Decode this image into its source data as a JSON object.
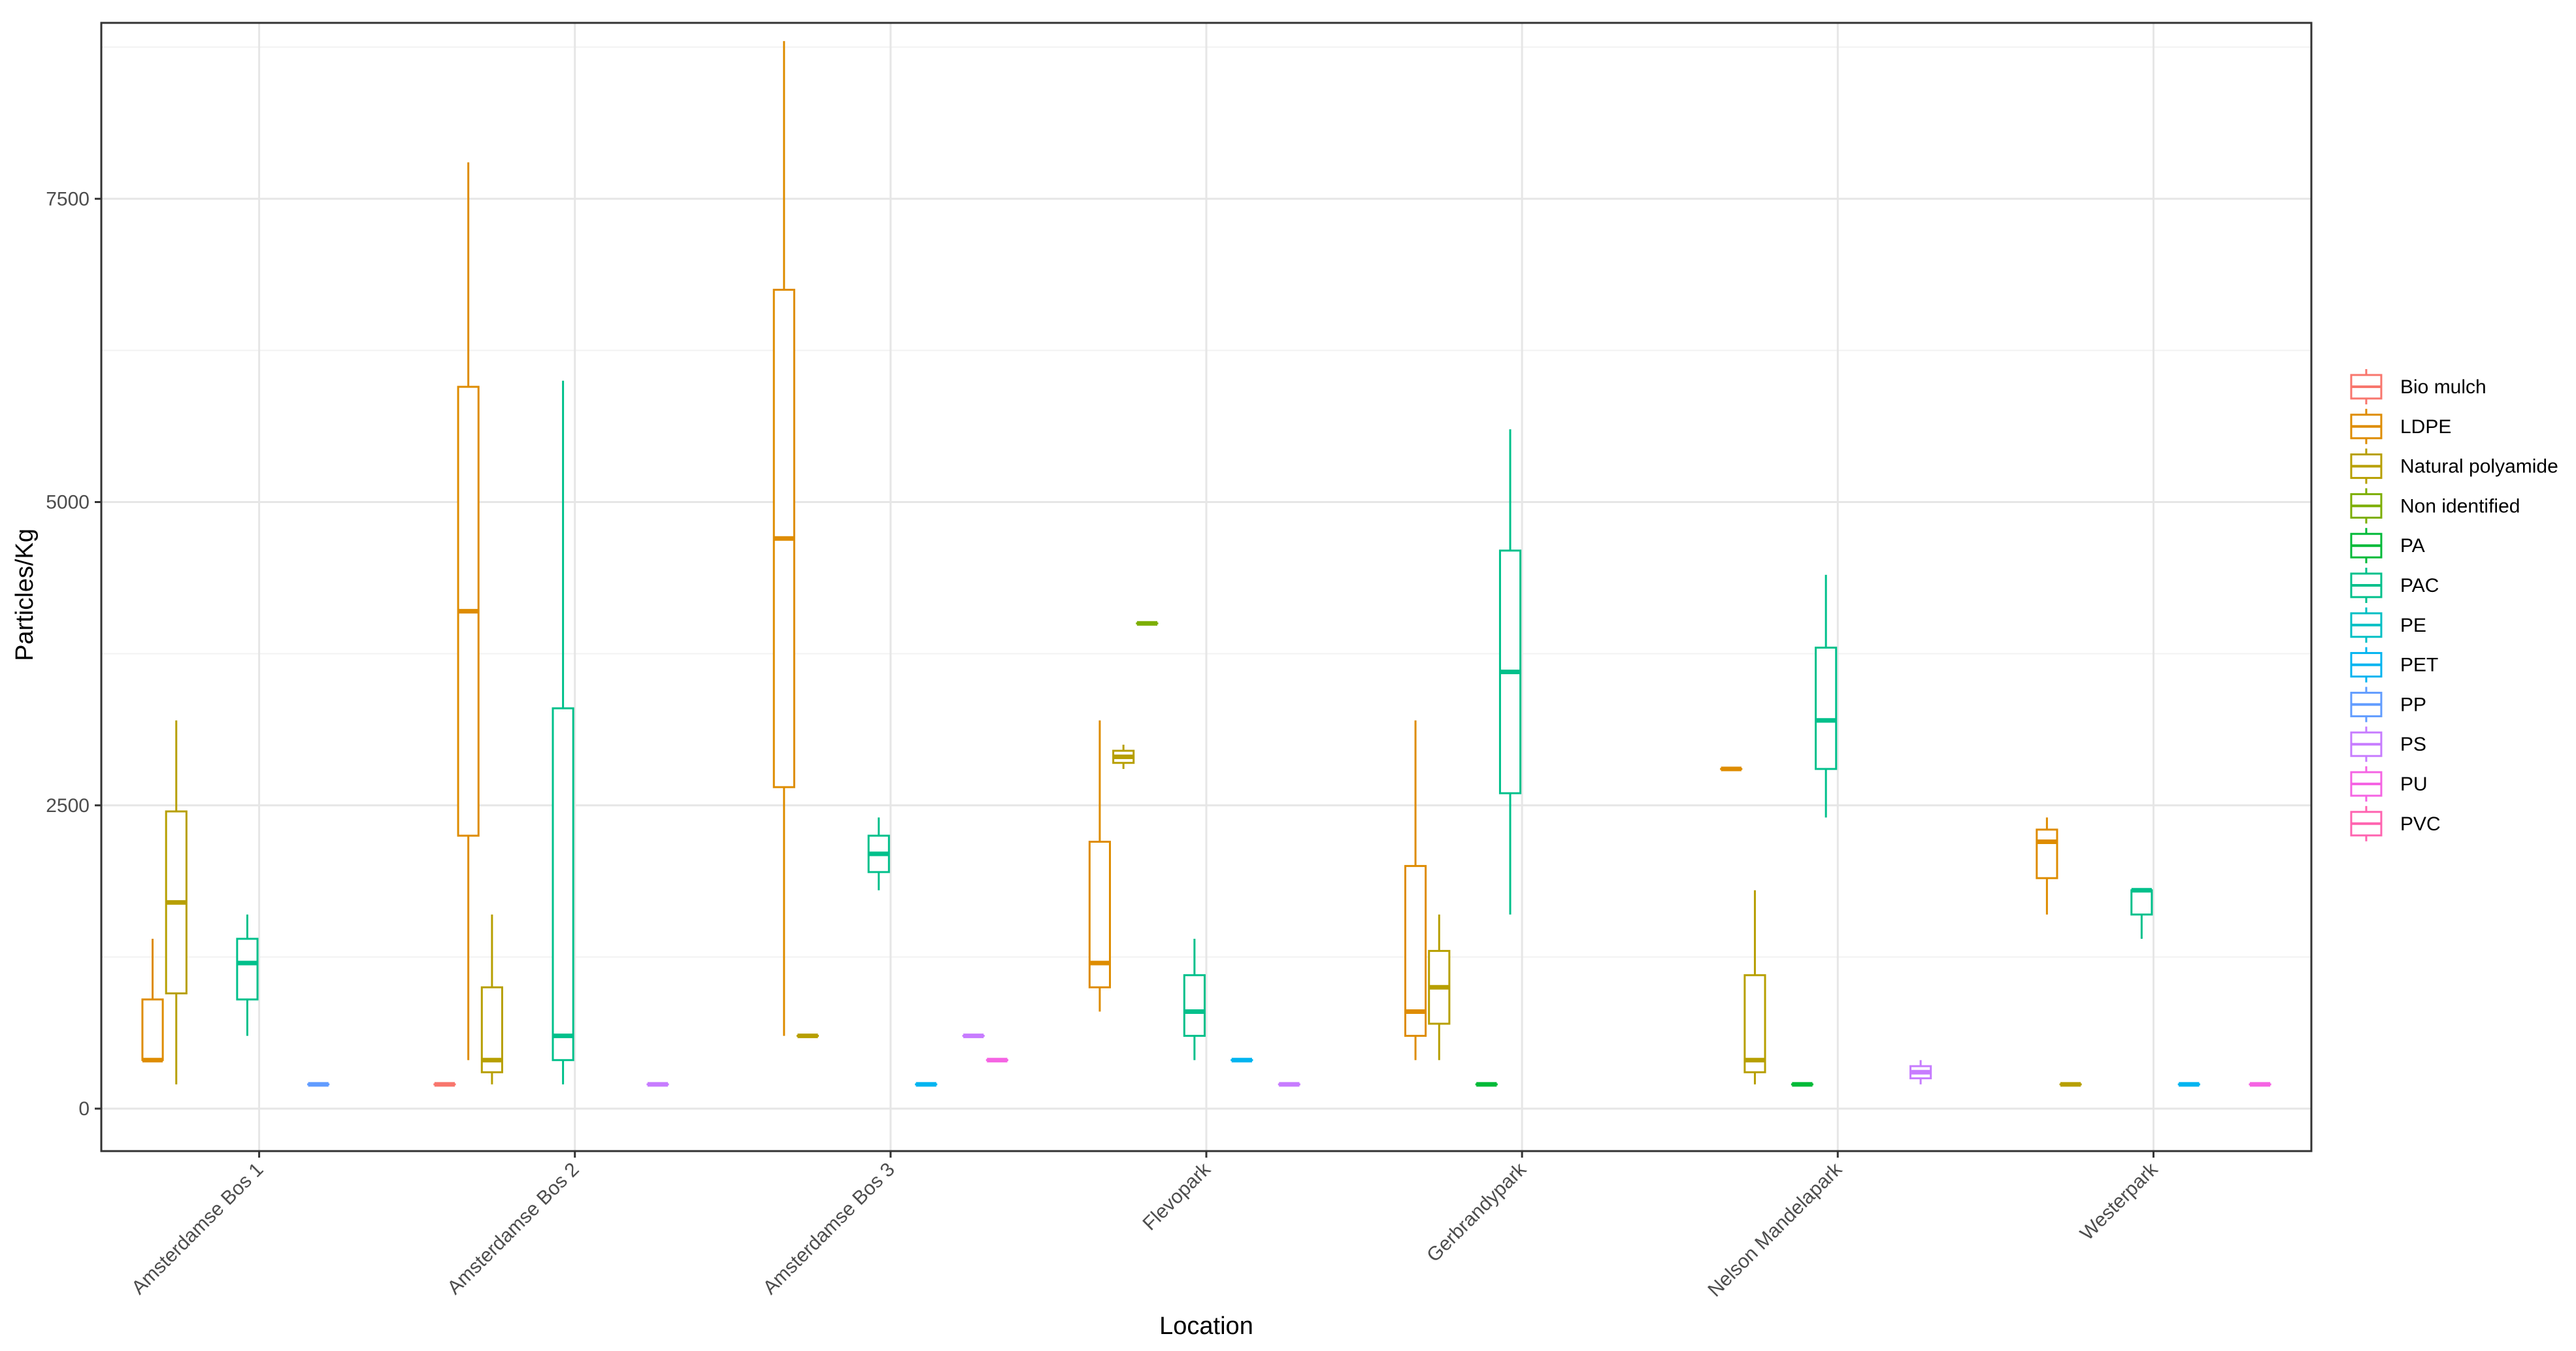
{
  "chart_data": {
    "type": "boxplot",
    "title": "",
    "xlabel": "Location",
    "ylabel": "Particles/Kg",
    "ylim": [
      -350,
      8950
    ],
    "y_ticks": [
      0,
      2500,
      5000,
      7500
    ],
    "grid": true,
    "legend_position": "right",
    "categories": [
      "Amsterdamse Bos 1",
      "Amsterdamse Bos 2",
      "Amsterdamse Bos 3",
      "Flevopark",
      "Gerbrandypark",
      "Nelson Mandelapark",
      "Westerpark"
    ],
    "series": [
      {
        "name": "Bio mulch",
        "color": "#F8766D"
      },
      {
        "name": "LDPE",
        "color": "#DE8C00"
      },
      {
        "name": "Natural polyamide",
        "color": "#B79F00"
      },
      {
        "name": "Non identified",
        "color": "#7CAE00"
      },
      {
        "name": "PA",
        "color": "#00BA38"
      },
      {
        "name": "PAC",
        "color": "#00C08B"
      },
      {
        "name": "PE",
        "color": "#00BFC4"
      },
      {
        "name": "PET",
        "color": "#00B4F0"
      },
      {
        "name": "PP",
        "color": "#619CFF"
      },
      {
        "name": "PS",
        "color": "#C77CFF"
      },
      {
        "name": "PU",
        "color": "#F564E3"
      },
      {
        "name": "PVC",
        "color": "#FF64B0"
      }
    ],
    "boxes": [
      {
        "location": "Amsterdamse Bos 1",
        "series": "LDPE",
        "min": 400,
        "q1": 400,
        "median": 400,
        "q3": 900,
        "max": 1400
      },
      {
        "location": "Amsterdamse Bos 1",
        "series": "Natural polyamide",
        "min": 200,
        "q1": 950,
        "median": 1700,
        "q3": 2450,
        "max": 3200
      },
      {
        "location": "Amsterdamse Bos 1",
        "series": "PAC",
        "min": 600,
        "q1": 900,
        "median": 1200,
        "q3": 1400,
        "max": 1600
      },
      {
        "location": "Amsterdamse Bos 1",
        "series": "PP",
        "min": 200,
        "q1": 200,
        "median": 200,
        "q3": 200,
        "max": 200
      },
      {
        "location": "Amsterdamse Bos 2",
        "series": "Bio mulch",
        "min": 200,
        "q1": 200,
        "median": 200,
        "q3": 200,
        "max": 200
      },
      {
        "location": "Amsterdamse Bos 2",
        "series": "LDPE",
        "min": 400,
        "q1": 2250,
        "median": 4100,
        "q3": 5950,
        "max": 7800
      },
      {
        "location": "Amsterdamse Bos 2",
        "series": "Natural polyamide",
        "min": 200,
        "q1": 300,
        "median": 400,
        "q3": 1000,
        "max": 1600
      },
      {
        "location": "Amsterdamse Bos 2",
        "series": "PAC",
        "min": 200,
        "q1": 400,
        "median": 600,
        "q3": 3300,
        "max": 6000
      },
      {
        "location": "Amsterdamse Bos 2",
        "series": "PS",
        "min": 200,
        "q1": 200,
        "median": 200,
        "q3": 200,
        "max": 200
      },
      {
        "location": "Amsterdamse Bos 3",
        "series": "LDPE",
        "min": 600,
        "q1": 2650,
        "median": 4700,
        "q3": 6750,
        "max": 8800
      },
      {
        "location": "Amsterdamse Bos 3",
        "series": "Natural polyamide",
        "min": 600,
        "q1": 600,
        "median": 600,
        "q3": 600,
        "max": 600
      },
      {
        "location": "Amsterdamse Bos 3",
        "series": "PAC",
        "min": 1800,
        "q1": 1950,
        "median": 2100,
        "q3": 2250,
        "max": 2400
      },
      {
        "location": "Amsterdamse Bos 3",
        "series": "PET",
        "min": 200,
        "q1": 200,
        "median": 200,
        "q3": 200,
        "max": 200
      },
      {
        "location": "Amsterdamse Bos 3",
        "series": "PS",
        "min": 600,
        "q1": 600,
        "median": 600,
        "q3": 600,
        "max": 600
      },
      {
        "location": "Amsterdamse Bos 3",
        "series": "PU",
        "min": 400,
        "q1": 400,
        "median": 400,
        "q3": 400,
        "max": 400
      },
      {
        "location": "Flevopark",
        "series": "LDPE",
        "min": 800,
        "q1": 1000,
        "median": 1200,
        "q3": 2200,
        "max": 3200
      },
      {
        "location": "Flevopark",
        "series": "Natural polyamide",
        "min": 2800,
        "q1": 2850,
        "median": 2900,
        "q3": 2950,
        "max": 3000
      },
      {
        "location": "Flevopark",
        "series": "Non identified",
        "min": 4000,
        "q1": 4000,
        "median": 4000,
        "q3": 4000,
        "max": 4000
      },
      {
        "location": "Flevopark",
        "series": "PAC",
        "min": 400,
        "q1": 600,
        "median": 800,
        "q3": 1100,
        "max": 1400
      },
      {
        "location": "Flevopark",
        "series": "PET",
        "min": 400,
        "q1": 400,
        "median": 400,
        "q3": 400,
        "max": 400
      },
      {
        "location": "Flevopark",
        "series": "PS",
        "min": 200,
        "q1": 200,
        "median": 200,
        "q3": 200,
        "max": 200
      },
      {
        "location": "Gerbrandypark",
        "series": "LDPE",
        "min": 400,
        "q1": 600,
        "median": 800,
        "q3": 2000,
        "max": 3200
      },
      {
        "location": "Gerbrandypark",
        "series": "Natural polyamide",
        "min": 400,
        "q1": 700,
        "median": 1000,
        "q3": 1300,
        "max": 1600
      },
      {
        "location": "Gerbrandypark",
        "series": "PA",
        "min": 200,
        "q1": 200,
        "median": 200,
        "q3": 200,
        "max": 200
      },
      {
        "location": "Gerbrandypark",
        "series": "PAC",
        "min": 1600,
        "q1": 2600,
        "median": 3600,
        "q3": 4600,
        "max": 5600
      },
      {
        "location": "Nelson Mandelapark",
        "series": "LDPE",
        "min": 2800,
        "q1": 2800,
        "median": 2800,
        "q3": 2800,
        "max": 2800
      },
      {
        "location": "Nelson Mandelapark",
        "series": "Natural polyamide",
        "min": 200,
        "q1": 300,
        "median": 400,
        "q3": 1100,
        "max": 1800
      },
      {
        "location": "Nelson Mandelapark",
        "series": "PA",
        "min": 200,
        "q1": 200,
        "median": 200,
        "q3": 200,
        "max": 200
      },
      {
        "location": "Nelson Mandelapark",
        "series": "PAC",
        "min": 2400,
        "q1": 2800,
        "median": 3200,
        "q3": 3800,
        "max": 4400
      },
      {
        "location": "Nelson Mandelapark",
        "series": "PS",
        "min": 200,
        "q1": 250,
        "median": 300,
        "q3": 350,
        "max": 400
      },
      {
        "location": "Westerpark",
        "series": "LDPE",
        "min": 1600,
        "q1": 1900,
        "median": 2200,
        "q3": 2300,
        "max": 2400
      },
      {
        "location": "Westerpark",
        "series": "Natural polyamide",
        "min": 200,
        "q1": 200,
        "median": 200,
        "q3": 200,
        "max": 200
      },
      {
        "location": "Westerpark",
        "series": "PAC",
        "min": 1400,
        "q1": 1600,
        "median": 1800,
        "q3": 1800,
        "max": 1800
      },
      {
        "location": "Westerpark",
        "series": "PET",
        "min": 200,
        "q1": 200,
        "median": 200,
        "q3": 200,
        "max": 200
      },
      {
        "location": "Westerpark",
        "series": "PU",
        "min": 200,
        "q1": 200,
        "median": 200,
        "q3": 200,
        "max": 200
      }
    ]
  }
}
